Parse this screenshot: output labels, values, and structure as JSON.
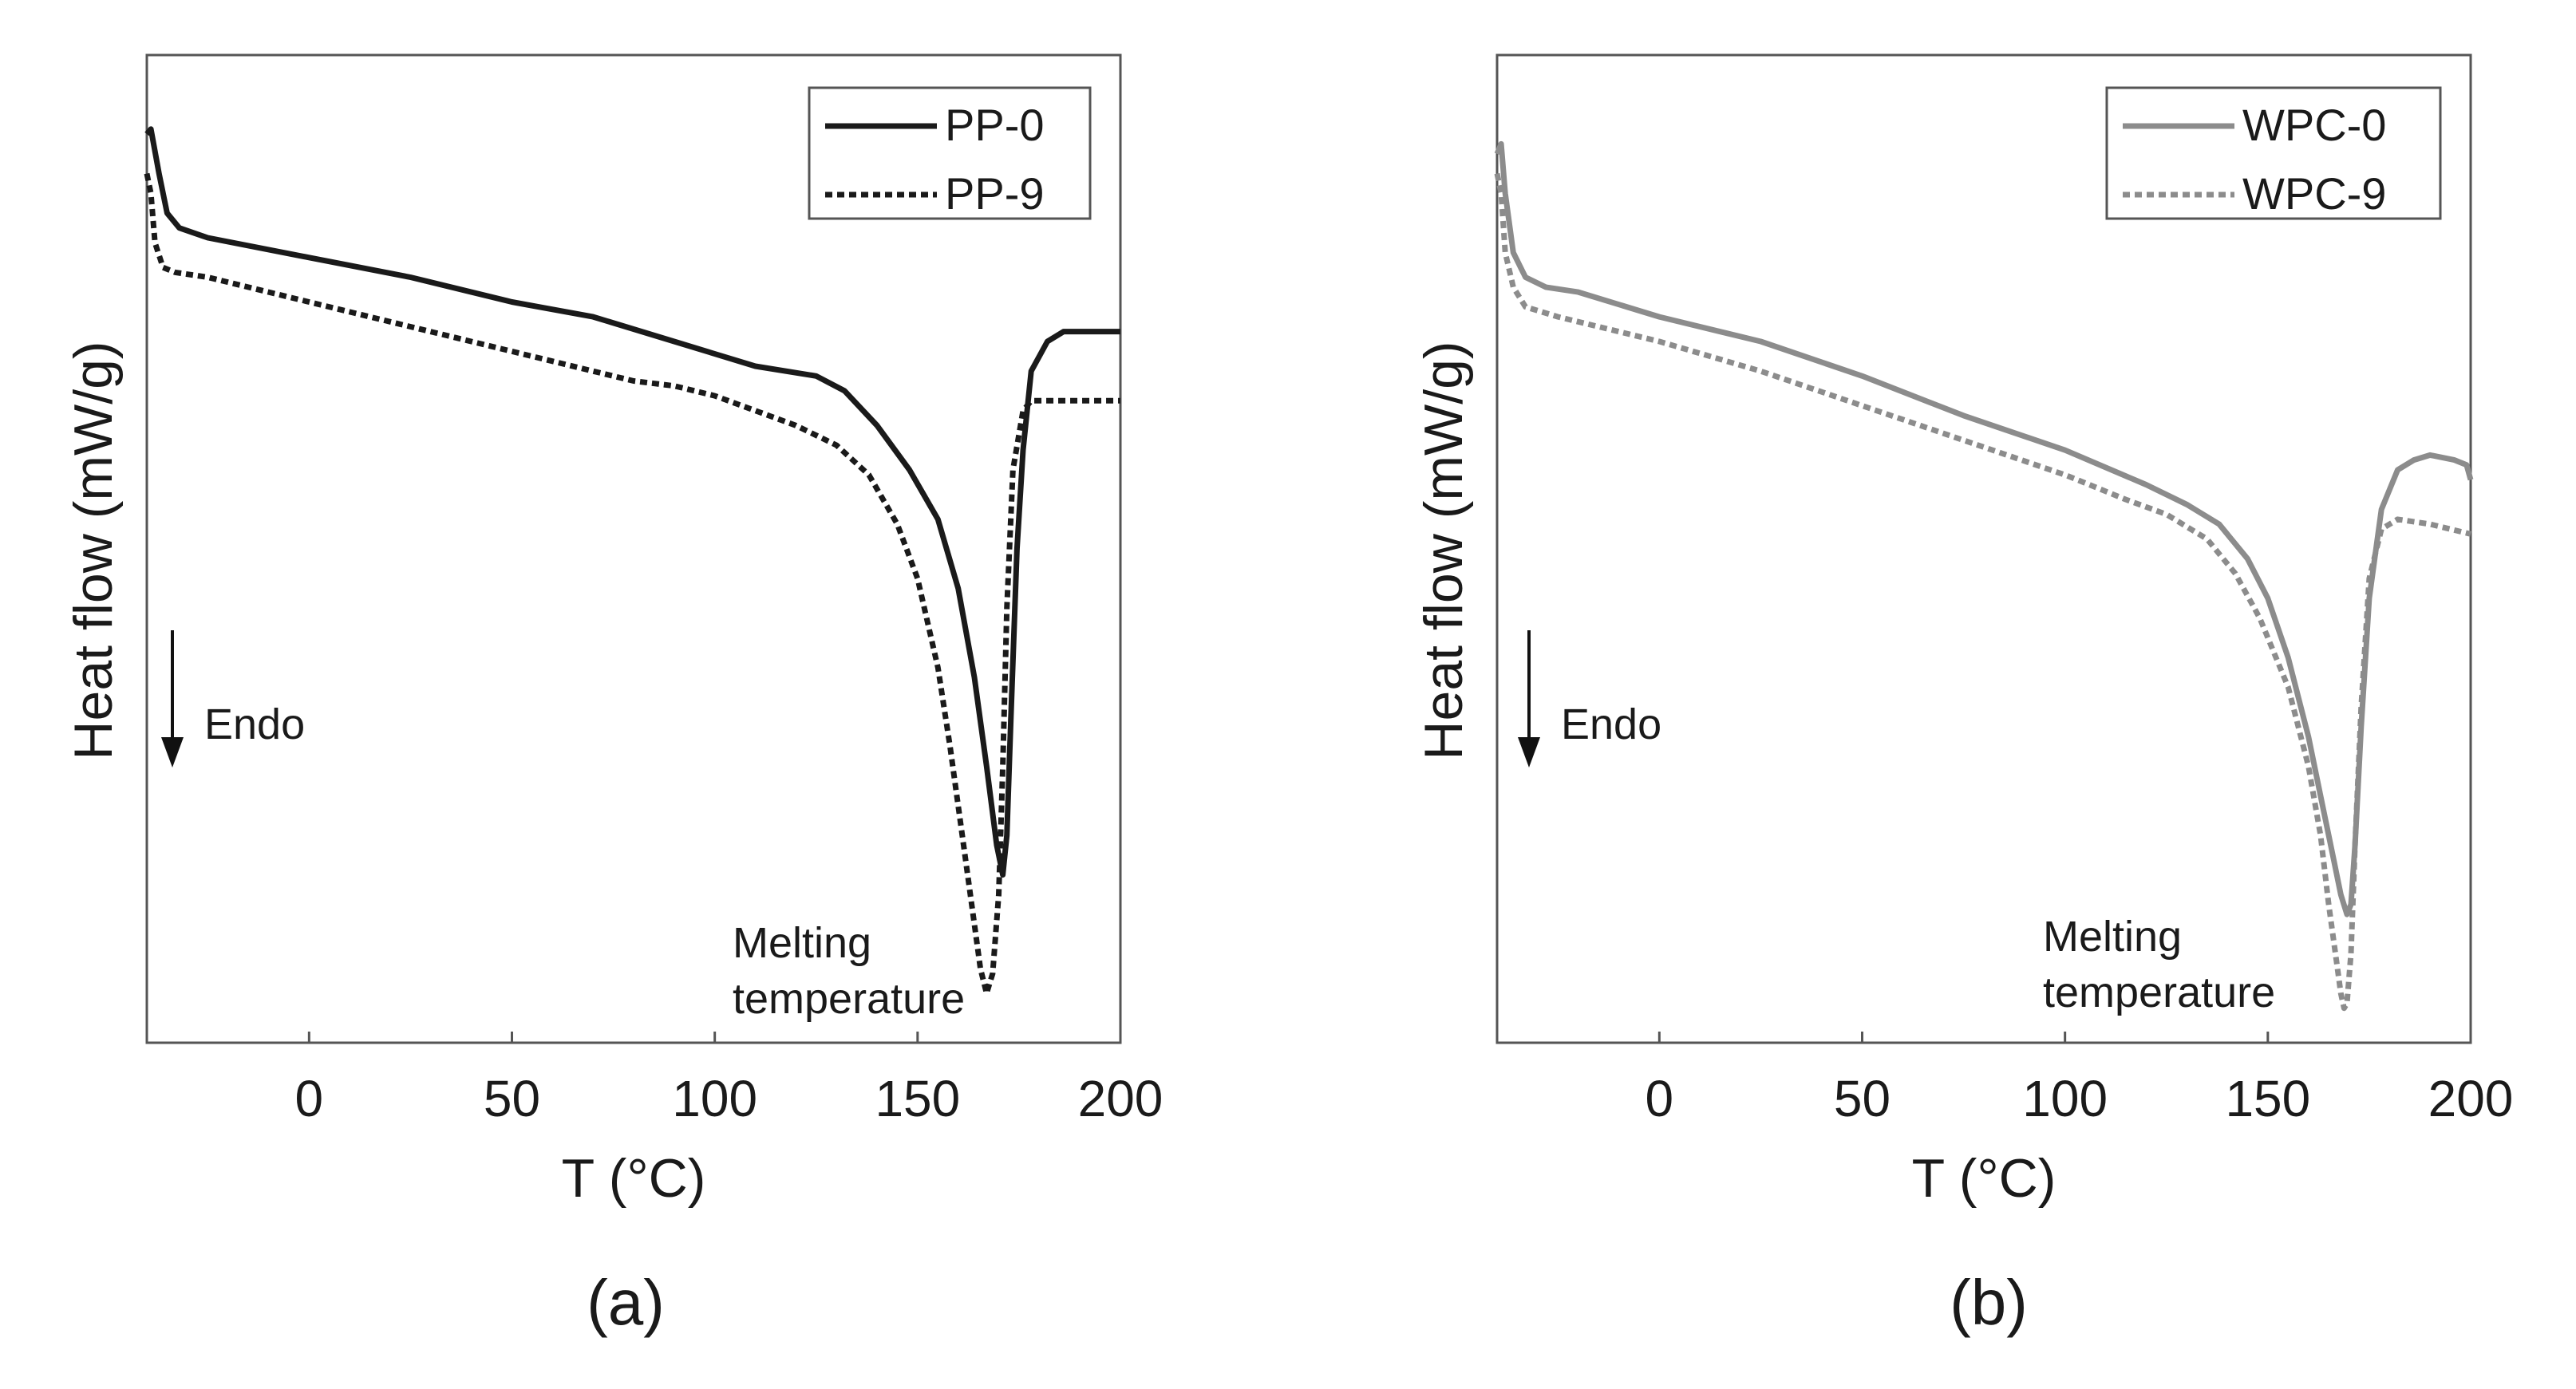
{
  "chart_data": [
    {
      "type": "line",
      "caption": "(a)",
      "xlabel": "T (°C)",
      "ylabel": "Heat flow (mW/g)",
      "xlim": [
        -40,
        200
      ],
      "ylim": [
        0,
        100
      ],
      "xticks": [
        0,
        50,
        100,
        150,
        200
      ],
      "yticks_shown": false,
      "grid": false,
      "legend_position": "top-right",
      "annotations": {
        "endo": "Endo",
        "melting_line1": "Melting",
        "melting_line2": "temperature"
      },
      "series": [
        {
          "name": "PP-0",
          "style": "solid",
          "color": "#1a1a1a",
          "x": [
            -40,
            -39,
            -37,
            -35,
            -32,
            -25,
            0,
            25,
            50,
            70,
            90,
            110,
            125,
            132,
            140,
            148,
            155,
            160,
            164,
            167,
            169.5,
            171,
            172,
            173,
            174.5,
            176,
            178,
            182,
            186,
            200
          ],
          "y": [
            92,
            92.5,
            88,
            84,
            82.5,
            81.5,
            79.5,
            77.5,
            75,
            73.5,
            71,
            68.5,
            67.5,
            66,
            62.5,
            58,
            53,
            46,
            37,
            28,
            20,
            17,
            21,
            33,
            50,
            60,
            68,
            71,
            72,
            72
          ]
        },
        {
          "name": "PP-9",
          "style": "dotted",
          "color": "#1a1a1a",
          "x": [
            -40,
            -39,
            -38,
            -36,
            -33,
            -25,
            0,
            25,
            50,
            70,
            80,
            90,
            100,
            110,
            120,
            130,
            138,
            145,
            150,
            155,
            158,
            161,
            164,
            165.5,
            167,
            168.5,
            170,
            171,
            172,
            173.5,
            176,
            178,
            182,
            200
          ],
          "y": [
            88,
            86,
            81,
            78.5,
            78,
            77.5,
            75,
            72.5,
            70,
            68,
            67,
            66.5,
            65.5,
            64,
            62.5,
            60.5,
            57.5,
            52.5,
            47,
            38,
            30,
            21,
            12,
            7.5,
            5,
            7,
            15,
            28,
            44,
            58,
            64,
            65,
            65,
            65
          ]
        }
      ]
    },
    {
      "type": "line",
      "caption": "(b)",
      "xlabel": "T (°C)",
      "ylabel": "Heat flow (mW/g)",
      "xlim": [
        -40,
        200
      ],
      "ylim": [
        0,
        100
      ],
      "xticks": [
        0,
        50,
        100,
        150,
        200
      ],
      "yticks_shown": false,
      "grid": false,
      "legend_position": "top-right",
      "annotations": {
        "endo": "Endo",
        "melting_line1": "Melting",
        "melting_line2": "temperature"
      },
      "series": [
        {
          "name": "WPC-0",
          "style": "solid",
          "color": "#8c8c8c",
          "x": [
            -40,
            -39,
            -38,
            -36,
            -33,
            -28,
            -20,
            0,
            25,
            50,
            75,
            100,
            120,
            130,
            138,
            145,
            150,
            155,
            160,
            163,
            166,
            168,
            169.5,
            170.5,
            171.5,
            173,
            175,
            178,
            182,
            186,
            190,
            196,
            199,
            200
          ],
          "y": [
            90,
            91,
            86,
            80,
            77.5,
            76.5,
            76,
            73.5,
            71,
            67.5,
            63.5,
            60,
            56.5,
            54.5,
            52.5,
            49,
            45,
            39,
            31,
            25,
            19,
            15,
            13,
            14,
            20,
            32,
            45,
            54,
            58,
            59,
            59.5,
            59,
            58.5,
            57
          ]
        },
        {
          "name": "WPC-9",
          "style": "dotted",
          "color": "#8c8c8c",
          "x": [
            -40,
            -39,
            -38,
            -36,
            -33,
            -25,
            0,
            25,
            50,
            75,
            100,
            115,
            125,
            135,
            142,
            148,
            155,
            160,
            163,
            165,
            167,
            168,
            168.8,
            169.5,
            170.5,
            171.5,
            173,
            175,
            178,
            182,
            190,
            200
          ],
          "y": [
            88,
            86,
            80,
            76.5,
            74.5,
            73.5,
            71,
            68,
            64.5,
            61,
            57.5,
            55,
            53.5,
            51,
            47.5,
            43,
            36,
            28,
            21,
            14,
            8,
            5,
            3.5,
            4,
            9,
            20,
            34,
            47,
            52,
            53,
            52.5,
            51.5
          ]
        }
      ]
    }
  ]
}
